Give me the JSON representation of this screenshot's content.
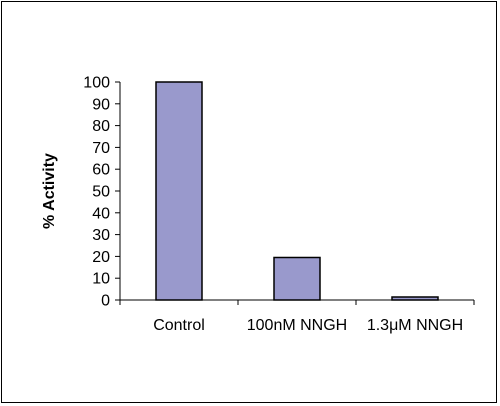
{
  "chart_data": {
    "type": "bar",
    "title": "",
    "xlabel": "",
    "ylabel": "% Activity",
    "categories": [
      "Control",
      "100nM NNGH",
      "1.3μM NNGH"
    ],
    "values": [
      100,
      19.5,
      1.2
    ],
    "ylim": [
      0,
      100
    ],
    "yticks": [
      0,
      10,
      20,
      30,
      40,
      50,
      60,
      70,
      80,
      90,
      100
    ],
    "grid": false,
    "legend": "none",
    "bar_color": "#9999cc",
    "bar_stroke": "#000000"
  }
}
